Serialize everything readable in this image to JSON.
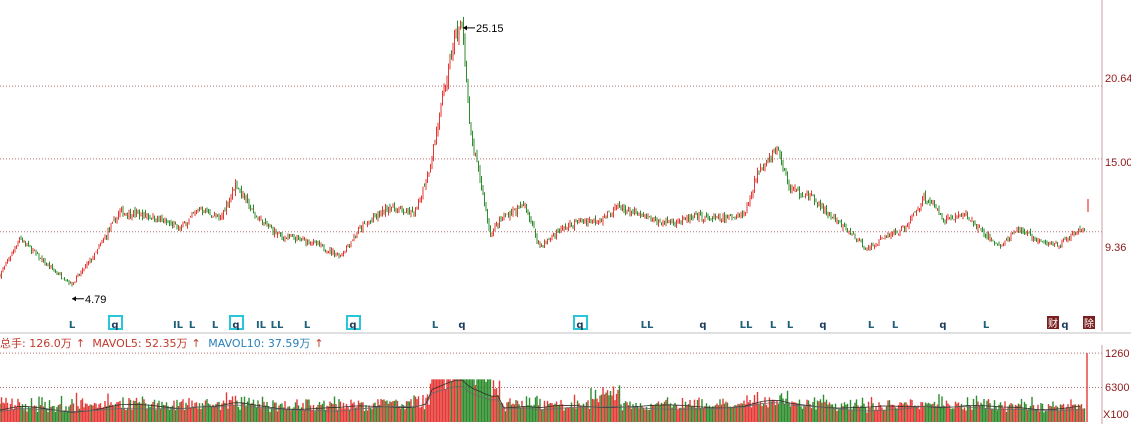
{
  "colors": {
    "up": "#e53935",
    "down": "#2e8b2e",
    "grid": "#b07070",
    "axis_text": "#8b1a1a",
    "marker_l": "#1f5f7a",
    "marker_q": "#1f3f5f",
    "marker_box": "#28c6d8",
    "tag_bg": "#7a1f1f"
  },
  "chart_data": {
    "type": "candlestick",
    "y_ticks": [
      "20.64",
      "15.00",
      "9.36"
    ],
    "y_tick_values": [
      20.64,
      15.0,
      9.36
    ],
    "ylim": [
      3.3,
      27.0
    ],
    "x_range": [
      0,
      1085
    ],
    "high_annotation": {
      "label": "25.15",
      "value": 25.15,
      "x": 463
    },
    "low_annotation": {
      "label": "4.79",
      "value": 4.79,
      "x": 72
    },
    "price_path_keypoints": [
      [
        0,
        6.0
      ],
      [
        20,
        8.9
      ],
      [
        45,
        6.9
      ],
      [
        72,
        5.3
      ],
      [
        95,
        7.6
      ],
      [
        120,
        10.9
      ],
      [
        150,
        10.6
      ],
      [
        180,
        9.6
      ],
      [
        200,
        11.2
      ],
      [
        220,
        10.3
      ],
      [
        236,
        13.1
      ],
      [
        255,
        10.6
      ],
      [
        280,
        9.0
      ],
      [
        310,
        8.6
      ],
      [
        340,
        7.5
      ],
      [
        360,
        9.6
      ],
      [
        390,
        11.3
      ],
      [
        415,
        10.7
      ],
      [
        430,
        14.5
      ],
      [
        445,
        20.5
      ],
      [
        455,
        24.5
      ],
      [
        463,
        25.15
      ],
      [
        470,
        17.0
      ],
      [
        480,
        13.5
      ],
      [
        490,
        9.2
      ],
      [
        505,
        10.6
      ],
      [
        525,
        11.4
      ],
      [
        540,
        8.2
      ],
      [
        560,
        9.5
      ],
      [
        580,
        10.2
      ],
      [
        600,
        10.3
      ],
      [
        618,
        11.3
      ],
      [
        640,
        10.6
      ],
      [
        660,
        10.1
      ],
      [
        680,
        10.2
      ],
      [
        700,
        10.5
      ],
      [
        720,
        10.3
      ],
      [
        745,
        10.8
      ],
      [
        760,
        14.5
      ],
      [
        778,
        15.7
      ],
      [
        790,
        12.7
      ],
      [
        810,
        12.1
      ],
      [
        830,
        10.6
      ],
      [
        850,
        9.3
      ],
      [
        868,
        8.0
      ],
      [
        885,
        9.0
      ],
      [
        905,
        9.6
      ],
      [
        925,
        12.1
      ],
      [
        945,
        10.3
      ],
      [
        965,
        10.7
      ],
      [
        980,
        9.5
      ],
      [
        1000,
        8.2
      ],
      [
        1020,
        9.6
      ],
      [
        1040,
        8.5
      ],
      [
        1060,
        8.4
      ],
      [
        1075,
        9.2
      ],
      [
        1085,
        9.6
      ]
    ],
    "markers": [
      {
        "label": "L",
        "x": 72,
        "boxed": false
      },
      {
        "label": "q",
        "x": 115,
        "boxed": true
      },
      {
        "label": "IL",
        "x": 178,
        "boxed": false
      },
      {
        "label": "L",
        "x": 192,
        "boxed": false
      },
      {
        "label": "L",
        "x": 215,
        "boxed": false
      },
      {
        "label": "q",
        "x": 236,
        "boxed": true
      },
      {
        "label": "IL",
        "x": 261,
        "boxed": false
      },
      {
        "label": "LL",
        "x": 277,
        "boxed": false
      },
      {
        "label": "L",
        "x": 307,
        "boxed": false
      },
      {
        "label": "q",
        "x": 353,
        "boxed": true
      },
      {
        "label": "L",
        "x": 435,
        "boxed": false
      },
      {
        "label": "q",
        "x": 462,
        "boxed": false
      },
      {
        "label": "q",
        "x": 580,
        "boxed": true
      },
      {
        "label": "LL",
        "x": 647,
        "boxed": false
      },
      {
        "label": "q",
        "x": 703,
        "boxed": false
      },
      {
        "label": "LL",
        "x": 746,
        "boxed": false
      },
      {
        "label": "L",
        "x": 773,
        "boxed": false
      },
      {
        "label": "L",
        "x": 790,
        "boxed": false
      },
      {
        "label": "q",
        "x": 823,
        "boxed": false
      },
      {
        "label": "L",
        "x": 871,
        "boxed": false
      },
      {
        "label": "L",
        "x": 895,
        "boxed": false
      },
      {
        "label": "q",
        "x": 943,
        "boxed": false
      },
      {
        "label": "L",
        "x": 986,
        "boxed": false
      },
      {
        "label": "q",
        "x": 1065,
        "boxed": false
      }
    ],
    "tags": [
      {
        "label": "财",
        "x": 1053
      },
      {
        "label": "除",
        "x": 1089
      }
    ],
    "volume": {
      "legend": {
        "total": "总手: 126.0万",
        "mavol5": "MAVOL5: 52.35万",
        "mavol10": "MAVOL10: 37.59万"
      },
      "y_ticks": [
        "1260",
        "6300",
        "X100"
      ],
      "y_tick_values": [
        12600,
        6300
      ],
      "ylim": [
        0,
        12800
      ],
      "unit_label": "X100"
    }
  }
}
